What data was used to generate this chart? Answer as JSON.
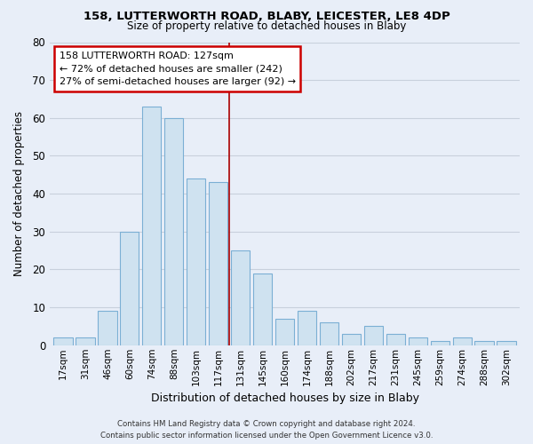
{
  "title1": "158, LUTTERWORTH ROAD, BLABY, LEICESTER, LE8 4DP",
  "title2": "Size of property relative to detached houses in Blaby",
  "xlabel": "Distribution of detached houses by size in Blaby",
  "ylabel": "Number of detached properties",
  "bar_labels": [
    "17sqm",
    "31sqm",
    "46sqm",
    "60sqm",
    "74sqm",
    "88sqm",
    "103sqm",
    "117sqm",
    "131sqm",
    "145sqm",
    "160sqm",
    "174sqm",
    "188sqm",
    "202sqm",
    "217sqm",
    "231sqm",
    "245sqm",
    "259sqm",
    "274sqm",
    "288sqm",
    "302sqm"
  ],
  "bar_values": [
    2,
    2,
    9,
    30,
    63,
    60,
    44,
    43,
    25,
    19,
    7,
    9,
    6,
    3,
    5,
    3,
    2,
    1,
    2,
    1,
    1
  ],
  "bar_color": "#cfe2f0",
  "bar_edge_color": "#7bafd4",
  "vline_x": 8,
  "vline_color": "#aa0000",
  "ylim": [
    0,
    80
  ],
  "yticks": [
    0,
    10,
    20,
    30,
    40,
    50,
    60,
    70,
    80
  ],
  "annotation_title": "158 LUTTERWORTH ROAD: 127sqm",
  "annotation_line1": "← 72% of detached houses are smaller (242)",
  "annotation_line2": "27% of semi-detached houses are larger (92) →",
  "annotation_box_color": "#ffffff",
  "annotation_box_edge": "#cc0000",
  "footer1": "Contains HM Land Registry data © Crown copyright and database right 2024.",
  "footer2": "Contains public sector information licensed under the Open Government Licence v3.0.",
  "background_color": "#e8eef8",
  "grid_color": "#c8d0dc",
  "title1_fontsize": 9.5,
  "title2_fontsize": 8.5
}
